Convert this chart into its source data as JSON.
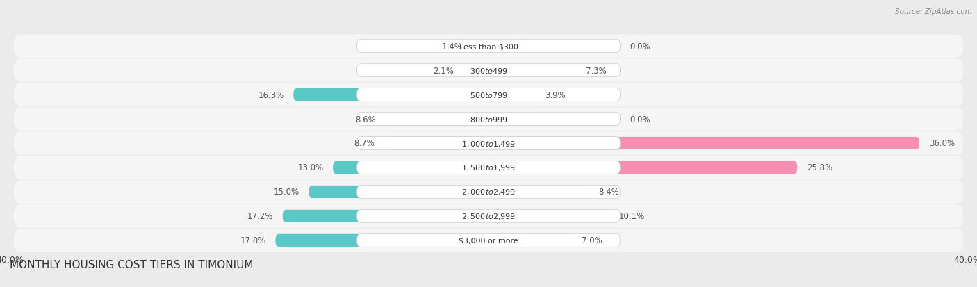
{
  "title": "MONTHLY HOUSING COST TIERS IN TIMONIUM",
  "source": "Source: ZipAtlas.com",
  "categories": [
    "Less than $300",
    "$300 to $499",
    "$500 to $799",
    "$800 to $999",
    "$1,000 to $1,499",
    "$1,500 to $1,999",
    "$2,000 to $2,499",
    "$2,500 to $2,999",
    "$3,000 or more"
  ],
  "owner_values": [
    1.4,
    2.1,
    16.3,
    8.6,
    8.7,
    13.0,
    15.0,
    17.2,
    17.8
  ],
  "renter_values": [
    0.0,
    7.3,
    3.9,
    0.0,
    36.0,
    25.8,
    8.4,
    10.1,
    7.0
  ],
  "owner_color": "#5BC8C8",
  "renter_color": "#F78FB1",
  "axis_max": 40.0,
  "background_color": "#ebebeb",
  "row_bg_color": "#f5f5f5",
  "title_fontsize": 11,
  "label_fontsize": 8.5,
  "category_fontsize": 8,
  "legend_fontsize": 9,
  "source_fontsize": 7.5
}
